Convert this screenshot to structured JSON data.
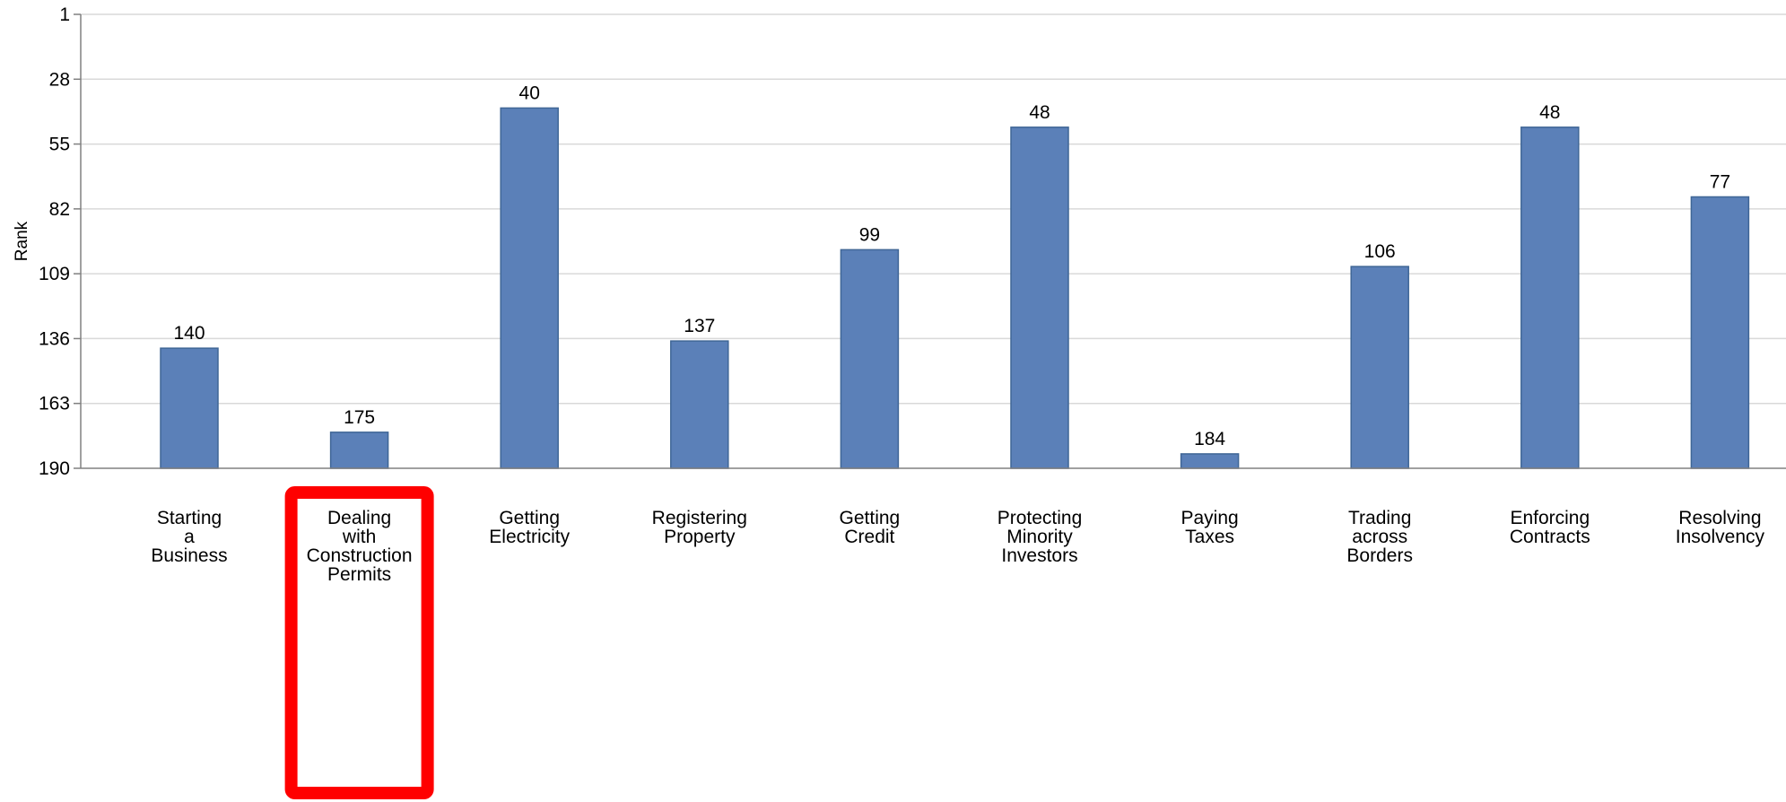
{
  "chart_data": {
    "type": "bar",
    "categories": [
      "Starting a Business",
      "Dealing with Construction Permits",
      "Getting Electricity",
      "Registering Property",
      "Getting Credit",
      "Protecting Minority Investors",
      "Paying Taxes",
      "Trading across Borders",
      "Enforcing Contracts",
      "Resolving Insolvency"
    ],
    "category_label_lines": [
      [
        "Starting",
        "a",
        "Business"
      ],
      [
        "Dealing",
        "with",
        "Construction",
        "Permits"
      ],
      [
        "Getting",
        "Electricity"
      ],
      [
        "Registering",
        "Property"
      ],
      [
        "Getting",
        "Credit"
      ],
      [
        "Protecting",
        "Minority",
        "Investors"
      ],
      [
        "Paying",
        "Taxes"
      ],
      [
        "Trading",
        "across",
        "Borders"
      ],
      [
        "Enforcing",
        "Contracts"
      ],
      [
        "Resolving",
        "Insolvency"
      ]
    ],
    "values": [
      140,
      175,
      40,
      137,
      99,
      48,
      184,
      106,
      48,
      77
    ],
    "data_labels": [
      "140",
      "175",
      "40",
      "137",
      "99",
      "48",
      "184",
      "106",
      "48",
      "77"
    ],
    "ylabel": "Rank",
    "xlabel": "",
    "title": "",
    "ylim": [
      190,
      1
    ],
    "y_inverted": true,
    "y_ticks": [
      1,
      28,
      55,
      82,
      109,
      136,
      163,
      190
    ],
    "grid": true,
    "bar_color": "#5b80b8",
    "bar_edge_color": "#3f6696",
    "highlight": {
      "category_index": 1,
      "color": "#ff0000"
    }
  }
}
